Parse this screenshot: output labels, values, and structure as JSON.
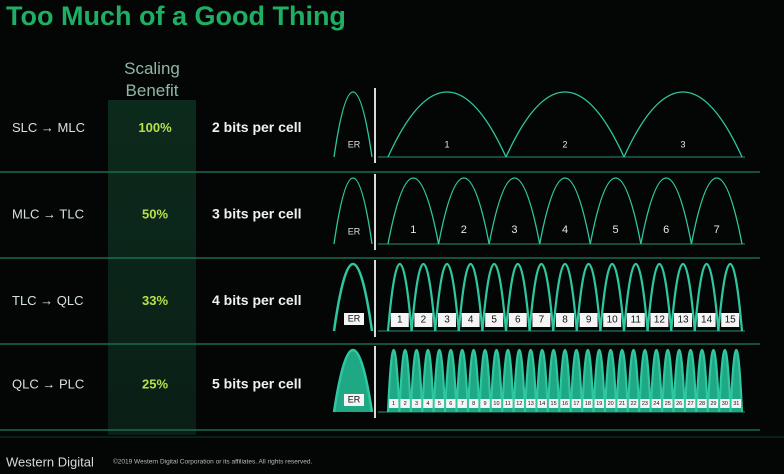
{
  "title": "Too Much of a Good Thing",
  "header": "Scaling Benefit",
  "rows": [
    {
      "transition": "SLC → MLC",
      "benefit": "100%",
      "bits": "2 bits per cell",
      "erased": "ER",
      "states": [
        1,
        2,
        3
      ]
    },
    {
      "transition": "MLC → TLC",
      "benefit": "50%",
      "bits": "3 bits per cell",
      "erased": "ER",
      "states": [
        1,
        2,
        3,
        4,
        5,
        6,
        7
      ]
    },
    {
      "transition": "TLC → QLC",
      "benefit": "33%",
      "bits": "4 bits per cell",
      "erased": "ER",
      "states": [
        1,
        2,
        3,
        4,
        5,
        6,
        7,
        8,
        9,
        10,
        11,
        12,
        13,
        14,
        15
      ]
    },
    {
      "transition": "QLC → PLC",
      "benefit": "25%",
      "bits": "5 bits per cell",
      "erased": "ER",
      "states": [
        1,
        2,
        3,
        4,
        5,
        6,
        7,
        8,
        9,
        10,
        11,
        12,
        13,
        14,
        15,
        16,
        17,
        18,
        19,
        20,
        21,
        22,
        23,
        24,
        25,
        26,
        27,
        28,
        29,
        30,
        31
      ]
    }
  ],
  "footer": {
    "brand": "Western Digital",
    "copyright": "©2019 Western Digital Corporation or its affiliates. All rights reserved."
  }
}
